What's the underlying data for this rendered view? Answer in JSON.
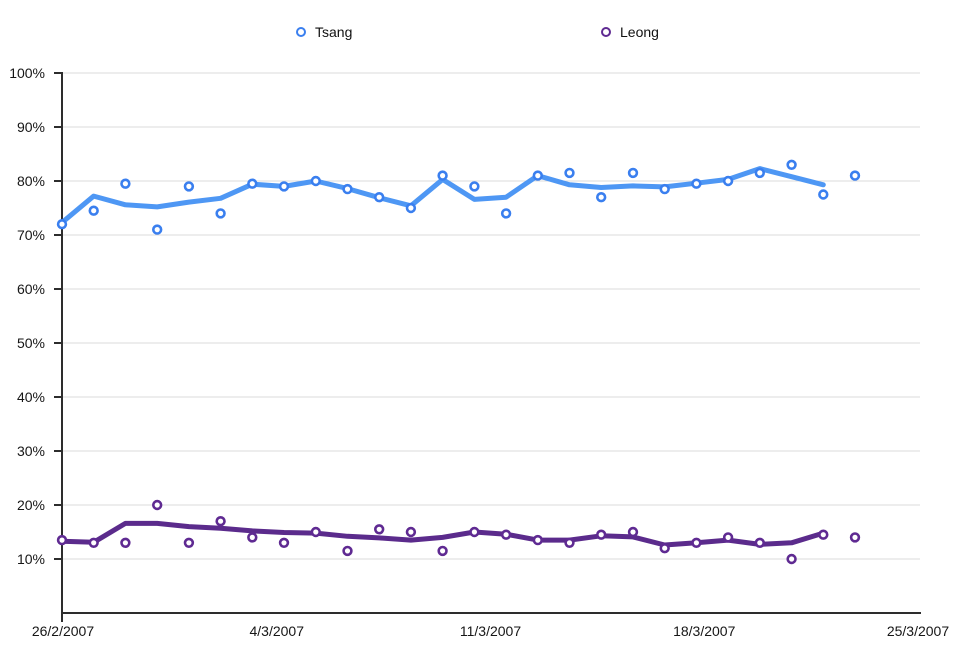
{
  "chart_data": {
    "type": "scatter",
    "title": "",
    "legend_position": "top",
    "grid": true,
    "x_axis": {
      "tick_labels": [
        "26/2/2007",
        "4/3/2007",
        "11/3/2007",
        "18/3/2007",
        "25/3/2007"
      ]
    },
    "y_axis": {
      "unit": "%",
      "min": 0,
      "max": 100,
      "step": 10,
      "tick_labels": [
        "100%",
        "90%",
        "80%",
        "70%",
        "60%",
        "50%",
        "40%",
        "30%",
        "20%",
        "10%"
      ]
    },
    "point_dates_approx": [
      "26/2/2007",
      "27/2/2007",
      "28/2/2007",
      "1/3/2007",
      "2/3/2007",
      "3/3/2007",
      "4/3/2007",
      "5/3/2007",
      "6/3/2007",
      "7/3/2007",
      "8/3/2007",
      "9/3/2007",
      "10/3/2007",
      "11/3/2007",
      "12/3/2007",
      "13/3/2007",
      "14/3/2007",
      "15/3/2007",
      "16/3/2007",
      "17/3/2007",
      "18/3/2007",
      "19/3/2007",
      "20/3/2007",
      "21/3/2007",
      "22/3/2007",
      "23/3/2007"
    ],
    "series": [
      {
        "name": "Tsang",
        "line_color": "#4e97f4",
        "marker_color": "#3a7fef",
        "points": [
          72,
          74.5,
          79.5,
          71,
          79,
          74,
          79.5,
          79,
          80,
          78.5,
          77,
          75,
          81,
          79,
          74,
          81,
          81.5,
          77,
          81.5,
          78.5,
          79.5,
          80,
          81.5,
          83,
          77.5,
          81
        ],
        "smoothed_line": [
          72.3,
          77.2,
          75.6,
          75.2,
          76.1,
          76.8,
          79.4,
          79.0,
          80.0,
          78.6,
          76.9,
          75.4,
          80.3,
          76.6,
          77.0,
          81.0,
          79.3,
          78.8,
          79.1,
          78.9,
          79.6,
          80.3,
          82.3,
          80.8,
          79.3
        ]
      },
      {
        "name": "Leong",
        "line_color": "#5b2b8c",
        "marker_color": "#5f2a92",
        "points": [
          13.5,
          13,
          13,
          20,
          13,
          17,
          14,
          13,
          15,
          11.5,
          15.5,
          15,
          11.5,
          15,
          14.5,
          13.5,
          13,
          14.5,
          15,
          12,
          13,
          14,
          13,
          10,
          14.5,
          14
        ],
        "smoothed_line": [
          13.3,
          13.1,
          16.6,
          16.6,
          16.0,
          15.7,
          15.2,
          14.9,
          14.8,
          14.2,
          13.9,
          13.5,
          14.0,
          15.0,
          14.6,
          13.5,
          13.5,
          14.3,
          14.1,
          12.6,
          13.0,
          13.5,
          12.7,
          13.0,
          14.8
        ]
      }
    ],
    "colors": {
      "gridline": "#dbdbdb",
      "axis": "#2d2d2d",
      "text": "#161616"
    }
  }
}
